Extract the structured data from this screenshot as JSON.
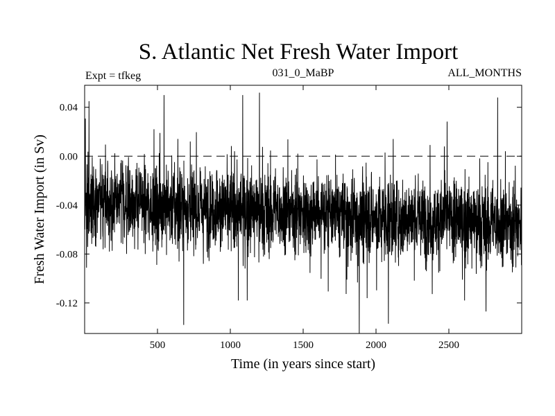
{
  "chart_data": {
    "type": "line",
    "title": "S. Atlantic Net Fresh Water Import",
    "subtitle_left": "Expt = tfkeg",
    "subtitle_center": "031_0_MaBP",
    "subtitle_right": "ALL_MONTHS",
    "xlabel": "Time (in years since start)",
    "ylabel": "Fresh Water Import (in Sv)",
    "xlim": [
      0,
      3000
    ],
    "ylim": [
      -0.145,
      0.058
    ],
    "xticks": [
      500,
      1000,
      1500,
      2000,
      2500
    ],
    "xtick_labels": [
      "500",
      "1000",
      "1500",
      "2000",
      "2500"
    ],
    "yticks": [
      0.04,
      0.0,
      -0.04,
      -0.08,
      -0.12
    ],
    "ytick_labels": [
      "0.04",
      "0.00",
      "-0.04",
      "-0.08",
      "-0.12"
    ],
    "reference_line": {
      "y": 0.0,
      "style": "dashed"
    },
    "grid": false,
    "series": [
      {
        "color": "#000000",
        "trend": {
          "x": [
            0,
            500,
            1000,
            1500,
            2000,
            2500,
            3000
          ],
          "y": [
            -0.035,
            -0.04,
            -0.043,
            -0.045,
            -0.05,
            -0.052,
            -0.055
          ]
        },
        "spread_sv": 0.016,
        "notable_extremes": [
          {
            "x": 30,
            "y": 0.045
          },
          {
            "x": 545,
            "y": 0.05
          },
          {
            "x": 680,
            "y": -0.138
          },
          {
            "x": 1085,
            "y": 0.05
          },
          {
            "x": 1200,
            "y": 0.052
          },
          {
            "x": 1885,
            "y": -0.145
          },
          {
            "x": 2085,
            "y": -0.137
          },
          {
            "x": 2835,
            "y": 0.048
          },
          {
            "x": 1055,
            "y": -0.118
          },
          {
            "x": 2755,
            "y": -0.127
          }
        ]
      }
    ]
  }
}
